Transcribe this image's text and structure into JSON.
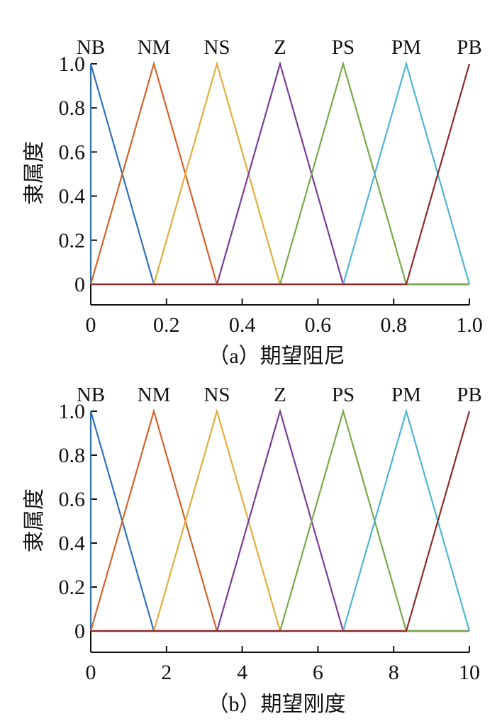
{
  "chart_data": [
    {
      "type": "line",
      "caption": "（a）期望阻尼",
      "ylabel": "隶属度",
      "xlim": [
        0,
        1.0
      ],
      "ylim": [
        0,
        1.0
      ],
      "xticks": [
        "0",
        "0.2",
        "0.4",
        "0.6",
        "0.8",
        "1.0"
      ],
      "xtick_values": [
        0,
        0.2,
        0.4,
        0.6,
        0.8,
        1.0
      ],
      "yticks": [
        "0",
        "0.2",
        "0.4",
        "0.6",
        "0.8",
        "1.0"
      ],
      "ytick_values": [
        0,
        0.2,
        0.4,
        0.6,
        0.8,
        1.0
      ],
      "term_labels": [
        "NB",
        "NM",
        "NS",
        "Z",
        "PS",
        "PM",
        "PB"
      ],
      "series": [
        {
          "name": "NB",
          "color": "#2f72b6",
          "x": [
            0,
            0,
            0.1667,
            1.0
          ],
          "y": [
            0,
            1,
            0,
            0
          ]
        },
        {
          "name": "NM",
          "color": "#d2632a",
          "x": [
            0,
            0.1667,
            0.3333,
            1.0
          ],
          "y": [
            0,
            1,
            0,
            0
          ]
        },
        {
          "name": "NS",
          "color": "#e3ad3a",
          "x": [
            0,
            0.1667,
            0.3333,
            0.5,
            1.0
          ],
          "y": [
            0,
            0,
            1,
            0,
            0
          ]
        },
        {
          "name": "Z",
          "color": "#7b3c97",
          "x": [
            0,
            0.3333,
            0.5,
            0.6667,
            1.0
          ],
          "y": [
            0,
            0,
            1,
            0,
            0
          ]
        },
        {
          "name": "PS",
          "color": "#79a94a",
          "x": [
            0,
            0.5,
            0.6667,
            0.8333,
            1.0
          ],
          "y": [
            0,
            0,
            1,
            0,
            0
          ]
        },
        {
          "name": "PM",
          "color": "#4eb5d6",
          "x": [
            0,
            0.6667,
            0.8333,
            1.0
          ],
          "y": [
            0,
            0,
            1,
            0
          ]
        },
        {
          "name": "PB",
          "color": "#8f2a2a",
          "x": [
            0,
            0.8333,
            1.0
          ],
          "y": [
            0,
            0,
            1
          ]
        }
      ]
    },
    {
      "type": "line",
      "caption": "（b）期望刚度",
      "ylabel": "隶属度",
      "xlim": [
        0,
        10
      ],
      "ylim": [
        0,
        1.0
      ],
      "xticks": [
        "0",
        "2",
        "4",
        "6",
        "8",
        "10"
      ],
      "xtick_values": [
        0,
        2,
        4,
        6,
        8,
        10
      ],
      "yticks": [
        "0",
        "0.2",
        "0.4",
        "0.6",
        "0.8",
        "1.0"
      ],
      "ytick_values": [
        0,
        0.2,
        0.4,
        0.6,
        0.8,
        1.0
      ],
      "term_labels": [
        "NB",
        "NM",
        "NS",
        "Z",
        "PS",
        "PM",
        "PB"
      ],
      "series": [
        {
          "name": "NB",
          "color": "#2f72b6",
          "x": [
            0,
            0,
            1.667,
            10
          ],
          "y": [
            0,
            1,
            0,
            0
          ]
        },
        {
          "name": "NM",
          "color": "#d2632a",
          "x": [
            0,
            1.667,
            3.333,
            10
          ],
          "y": [
            0,
            1,
            0,
            0
          ]
        },
        {
          "name": "NS",
          "color": "#e3ad3a",
          "x": [
            0,
            1.667,
            3.333,
            5,
            10
          ],
          "y": [
            0,
            0,
            1,
            0,
            0
          ]
        },
        {
          "name": "Z",
          "color": "#7b3c97",
          "x": [
            0,
            3.333,
            5,
            6.667,
            10
          ],
          "y": [
            0,
            0,
            1,
            0,
            0
          ]
        },
        {
          "name": "PS",
          "color": "#79a94a",
          "x": [
            0,
            5,
            6.667,
            8.333,
            10
          ],
          "y": [
            0,
            0,
            1,
            0,
            0
          ]
        },
        {
          "name": "PM",
          "color": "#4eb5d6",
          "x": [
            0,
            6.667,
            8.333,
            10
          ],
          "y": [
            0,
            0,
            1,
            0
          ]
        },
        {
          "name": "PB",
          "color": "#8f2a2a",
          "x": [
            0,
            8.333,
            10
          ],
          "y": [
            0,
            0,
            1
          ]
        }
      ]
    }
  ]
}
